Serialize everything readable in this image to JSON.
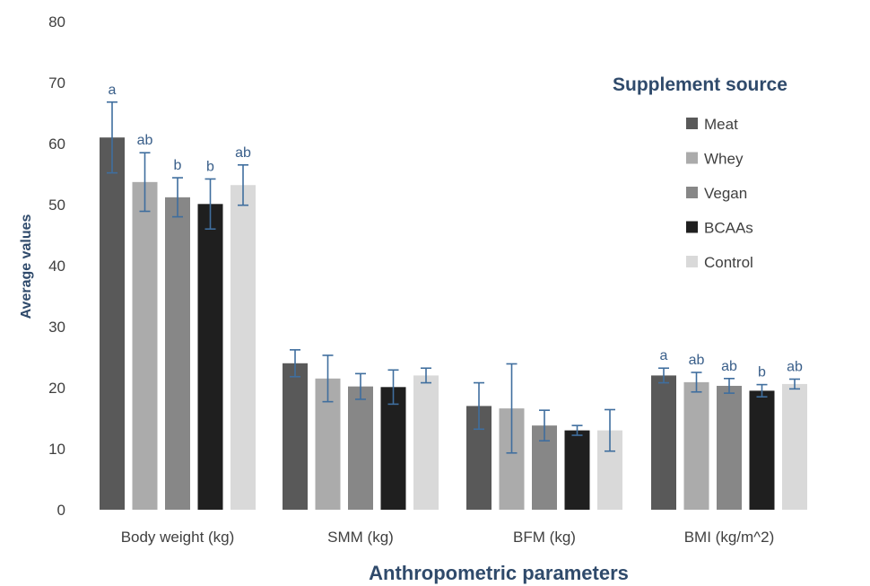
{
  "chart_data": {
    "type": "bar",
    "title": "",
    "xlabel": "Anthropometric parameters",
    "ylabel": "Average values",
    "ylim": [
      0,
      80
    ],
    "yticks": [
      0,
      10,
      20,
      30,
      40,
      50,
      60,
      70,
      80
    ],
    "grid": false,
    "legend_position": "right",
    "legend_title": "Supplement source",
    "categories": [
      "Body weight (kg)",
      "SMM (kg)",
      "BFM (kg)",
      "BMI (kg/m^2)"
    ],
    "series": [
      {
        "name": "Meat",
        "color": "#595959",
        "values": [
          61,
          24,
          17,
          22
        ],
        "errors": [
          5.8,
          2.2,
          3.8,
          1.2
        ],
        "labels": [
          "a",
          "",
          "",
          "a"
        ]
      },
      {
        "name": "Whey",
        "color": "#ABABAB",
        "values": [
          53.7,
          21.5,
          16.6,
          20.9
        ],
        "errors": [
          4.8,
          3.8,
          7.3,
          1.6
        ],
        "labels": [
          "ab",
          "",
          "",
          "ab"
        ]
      },
      {
        "name": "Vegan",
        "color": "#878787",
        "values": [
          51.2,
          20.2,
          13.8,
          20.3
        ],
        "errors": [
          3.2,
          2.1,
          2.5,
          1.2
        ],
        "labels": [
          "b",
          "",
          "",
          "ab"
        ]
      },
      {
        "name": "BCAAs",
        "color": "#1F1F1F",
        "values": [
          50.1,
          20.1,
          13.0,
          19.5
        ],
        "errors": [
          4.1,
          2.8,
          0.8,
          1.0
        ],
        "labels": [
          "b",
          "",
          "",
          "b"
        ]
      },
      {
        "name": "Control",
        "color": "#D9D9D9",
        "values": [
          53.2,
          22.0,
          13.0,
          20.6
        ],
        "errors": [
          3.3,
          1.2,
          3.4,
          0.8
        ],
        "labels": [
          "ab",
          "",
          "",
          "ab"
        ]
      }
    ],
    "error_bar_color": "#3F6E9E"
  }
}
